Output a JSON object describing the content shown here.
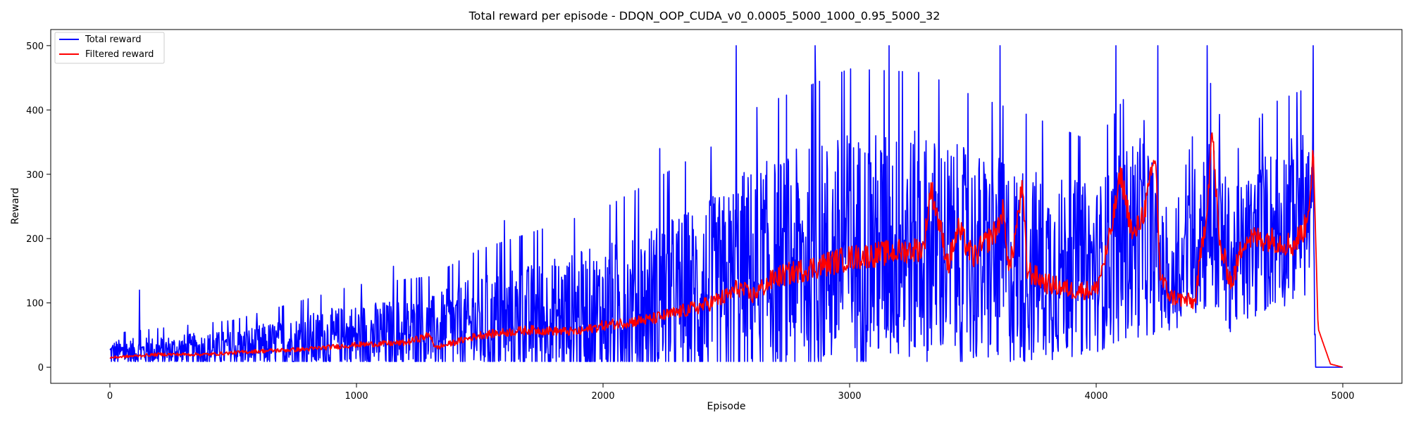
{
  "chart_data": {
    "type": "line",
    "title": "Total reward per episode - DDQN_OOP_CUDA_v0_0.0005_5000_1000_0.95_5000_32",
    "xlabel": "Episode",
    "ylabel": "Reward",
    "xlim": [
      -240,
      5240
    ],
    "ylim": [
      -25,
      525
    ],
    "xticks": [
      0,
      1000,
      2000,
      3000,
      4000,
      5000
    ],
    "yticks": [
      0,
      100,
      200,
      300,
      400,
      500
    ],
    "grid": false,
    "legend_position": "top-left",
    "series": [
      {
        "name": "Total reward",
        "color": "#0000ff",
        "x_range": [
          0,
          5000
        ],
        "approx_profile": {
          "x": [
            0,
            500,
            1000,
            1300,
            1500,
            2000,
            2500,
            2550,
            3000,
            3300,
            3500,
            3700,
            4000,
            4200,
            4300,
            4450,
            4550,
            4700,
            4880,
            4890,
            5000
          ],
          "center": [
            20,
            25,
            40,
            45,
            55,
            70,
            100,
            120,
            160,
            170,
            150,
            140,
            140,
            200,
            110,
            220,
            150,
            200,
            230,
            0,
            0
          ],
          "spread": [
            20,
            30,
            55,
            60,
            80,
            110,
            160,
            170,
            190,
            180,
            170,
            160,
            130,
            170,
            60,
            150,
            110,
            130,
            130,
            0,
            0
          ]
        },
        "spikes": [
          {
            "x": 120,
            "y": 120
          },
          {
            "x": 615,
            "y": 125
          },
          {
            "x": 1150,
            "y": 157
          },
          {
            "x": 1600,
            "y": 228
          },
          {
            "x": 2230,
            "y": 340
          },
          {
            "x": 2540,
            "y": 500
          },
          {
            "x": 2860,
            "y": 500
          },
          {
            "x": 3160,
            "y": 500
          },
          {
            "x": 3610,
            "y": 500
          },
          {
            "x": 4080,
            "y": 500
          },
          {
            "x": 4250,
            "y": 500
          },
          {
            "x": 4450,
            "y": 500
          },
          {
            "x": 4880,
            "y": 500
          }
        ]
      },
      {
        "name": "Filtered reward",
        "color": "#ff0000",
        "x": [
          0,
          200,
          400,
          600,
          800,
          1000,
          1200,
          1300,
          1320,
          1500,
          1700,
          1900,
          2000,
          2100,
          2200,
          2300,
          2400,
          2500,
          2550,
          2600,
          2700,
          2800,
          2900,
          3000,
          3100,
          3200,
          3300,
          3330,
          3400,
          3440,
          3500,
          3600,
          3620,
          3650,
          3700,
          3720,
          3800,
          3900,
          4000,
          4050,
          4100,
          4150,
          4200,
          4240,
          4260,
          4300,
          4400,
          4450,
          4470,
          4500,
          4550,
          4600,
          4700,
          4800,
          4850,
          4870,
          4880,
          4900,
          4950,
          5000
        ],
        "y": [
          15,
          20,
          20,
          25,
          28,
          35,
          38,
          50,
          30,
          50,
          58,
          55,
          65,
          70,
          75,
          85,
          95,
          110,
          125,
          110,
          140,
          150,
          160,
          170,
          175,
          180,
          185,
          280,
          160,
          215,
          170,
          215,
          245,
          150,
          280,
          150,
          130,
          120,
          120,
          190,
          300,
          200,
          250,
          330,
          140,
          110,
          100,
          250,
          370,
          190,
          130,
          200,
          200,
          190,
          220,
          280,
          340,
          60,
          5,
          0
        ]
      }
    ]
  }
}
